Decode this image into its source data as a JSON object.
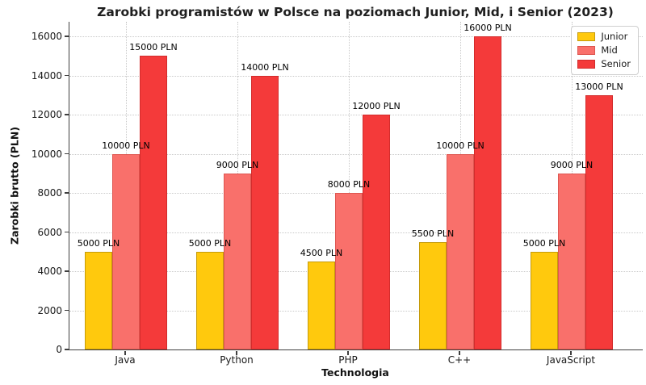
{
  "chart_data": {
    "type": "bar",
    "title": "Zarobki programistów w Polsce na poziomach Junior, Mid, i Senior (2023)",
    "xlabel": "Technologia",
    "ylabel": "Zarobki brutto (PLN)",
    "categories": [
      "Java",
      "Python",
      "PHP",
      "C++",
      "JavaScript"
    ],
    "series": [
      {
        "name": "Junior",
        "values": [
          5000,
          5000,
          4500,
          5500,
          5000
        ],
        "fill": "#FFC90D",
        "edge": "#C59B0A"
      },
      {
        "name": "Mid",
        "values": [
          10000,
          9000,
          8000,
          10000,
          9000
        ],
        "fill": "#F9706B",
        "edge": "#DE5650"
      },
      {
        "name": "Senior",
        "values": [
          15000,
          14000,
          12000,
          16000,
          13000
        ],
        "fill": "#F43A3A",
        "edge": "#D22C2C"
      }
    ],
    "bar_label_suffix": " PLN",
    "yticks": [
      0,
      2000,
      4000,
      6000,
      8000,
      10000,
      12000,
      14000,
      16000
    ],
    "ylim": [
      0,
      16800
    ],
    "grid": true,
    "legend": {
      "position": "top-right",
      "labels": [
        "Junior",
        "Mid",
        "Senior"
      ]
    },
    "colors": {
      "grid": "#c9c9c9",
      "spine": "#3f3f3f",
      "text": "#1a1a1a"
    }
  }
}
